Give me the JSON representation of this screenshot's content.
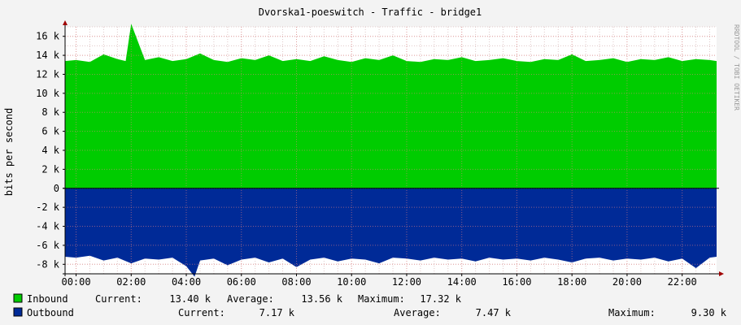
{
  "title": "Dvorska1-poeswitch - Traffic - bridge1",
  "watermark": "RRDTOOL / TOBI OETIKER",
  "colors": {
    "background": "#f3f3f3",
    "plot_background": "#ffffff",
    "grid_minor": "#e0c8c8",
    "grid_major": "#e08080",
    "inbound": "#00cc00",
    "outbound": "#002a97",
    "axis": "#000000",
    "arrow": "#a00000"
  },
  "chart_data": {
    "type": "area",
    "title": "Dvorska1-poeswitch - Traffic - bridge1",
    "ylabel": "bits per second",
    "ylim": [
      -9000,
      17000
    ],
    "xlim": [
      -0.4,
      23.25
    ],
    "x_ticks": [
      0,
      2,
      4,
      6,
      8,
      10,
      12,
      14,
      16,
      18,
      20,
      22
    ],
    "x_tick_labels": [
      "00:00",
      "02:00",
      "04:00",
      "06:00",
      "08:00",
      "10:00",
      "12:00",
      "14:00",
      "16:00",
      "18:00",
      "20:00",
      "22:00"
    ],
    "y_ticks": [
      -8000,
      -6000,
      -4000,
      -2000,
      0,
      2000,
      4000,
      6000,
      8000,
      10000,
      12000,
      14000,
      16000
    ],
    "y_tick_labels": [
      "-8 k",
      "-6 k",
      "-4 k",
      "-2 k",
      "0",
      "2 k",
      "4 k",
      "6 k",
      "8 k",
      "10 k",
      "12 k",
      "14 k",
      "16 k"
    ],
    "grid": true,
    "legend_placement": "bottom",
    "series": [
      {
        "name": "Inbound",
        "color": "#00cc00",
        "x": [
          -0.4,
          0.0,
          0.5,
          1.0,
          1.5,
          1.8,
          2.0,
          2.5,
          3.0,
          3.5,
          4.0,
          4.5,
          5.0,
          5.5,
          6.0,
          6.5,
          7.0,
          7.5,
          8.0,
          8.5,
          9.0,
          9.5,
          10.0,
          10.5,
          11.0,
          11.5,
          12.0,
          12.5,
          13.0,
          13.5,
          14.0,
          14.5,
          15.0,
          15.5,
          16.0,
          16.5,
          17.0,
          17.5,
          18.0,
          18.5,
          19.0,
          19.5,
          20.0,
          20.5,
          21.0,
          21.5,
          22.0,
          22.5,
          23.0,
          23.25
        ],
        "values": [
          13400,
          13500,
          13300,
          14100,
          13600,
          13400,
          17320,
          13500,
          13800,
          13400,
          13600,
          14200,
          13500,
          13300,
          13700,
          13500,
          14000,
          13400,
          13600,
          13400,
          13900,
          13500,
          13300,
          13700,
          13500,
          14000,
          13400,
          13300,
          13600,
          13500,
          13800,
          13400,
          13500,
          13700,
          13400,
          13300,
          13600,
          13500,
          14100,
          13400,
          13500,
          13700,
          13300,
          13600,
          13500,
          13800,
          13400,
          13600,
          13500,
          13400
        ]
      },
      {
        "name": "Outbound",
        "color": "#002a97",
        "x": [
          -0.4,
          0.0,
          0.5,
          1.0,
          1.5,
          2.0,
          2.5,
          3.0,
          3.5,
          4.0,
          4.3,
          4.5,
          5.0,
          5.5,
          6.0,
          6.5,
          7.0,
          7.5,
          8.0,
          8.5,
          9.0,
          9.5,
          10.0,
          10.5,
          11.0,
          11.5,
          12.0,
          12.5,
          13.0,
          13.5,
          14.0,
          14.5,
          15.0,
          15.5,
          16.0,
          16.5,
          17.0,
          17.5,
          18.0,
          18.5,
          19.0,
          19.5,
          20.0,
          20.5,
          21.0,
          21.5,
          22.0,
          22.5,
          23.0,
          23.25
        ],
        "values": [
          -7200,
          -7300,
          -7100,
          -7600,
          -7300,
          -7900,
          -7400,
          -7500,
          -7300,
          -8200,
          -9300,
          -7600,
          -7400,
          -8100,
          -7500,
          -7300,
          -7800,
          -7400,
          -8300,
          -7500,
          -7300,
          -7700,
          -7400,
          -7500,
          -7900,
          -7300,
          -7400,
          -7600,
          -7300,
          -7500,
          -7400,
          -7700,
          -7300,
          -7500,
          -7400,
          -7600,
          -7300,
          -7500,
          -7800,
          -7400,
          -7300,
          -7600,
          -7400,
          -7500,
          -7300,
          -7700,
          -7400,
          -8400,
          -7300,
          -7200
        ]
      }
    ]
  },
  "legend": [
    {
      "label": "Inbound",
      "color": "#00cc00",
      "current_label": "Current:",
      "current": "13.40 k",
      "average_label": "Average:",
      "average": "13.56 k",
      "maximum_label": "Maximum:",
      "maximum": "17.32 k"
    },
    {
      "label": "Outbound",
      "color": "#002a97",
      "current_label": "Current:",
      "current": "7.17 k",
      "average_label": "Average:",
      "average": "7.47 k",
      "maximum_label": "Maximum:",
      "maximum": "9.30 k"
    }
  ]
}
